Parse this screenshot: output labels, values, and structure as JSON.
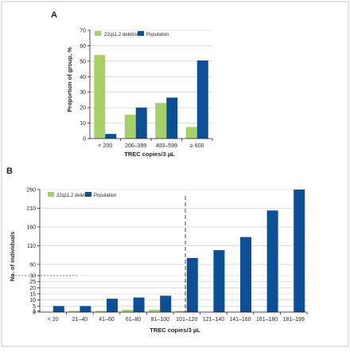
{
  "colors": {
    "deletion": "#a9cf6a",
    "population": "#0d4f94",
    "grid": "#c9c9c9",
    "text": "#231f20"
  },
  "chart_data": [
    {
      "panel": "A",
      "type": "bar",
      "categories": [
        "< 200",
        "200–399",
        "400–599",
        "≥ 600"
      ],
      "series": [
        {
          "name": "22q11.2 deletion",
          "values": [
            54,
            15.5,
            23,
            7.5
          ]
        },
        {
          "name": "Population",
          "values": [
            3,
            20,
            26.5,
            50.5
          ]
        }
      ],
      "xlabel": "TREC copies/3 µL",
      "ylabel": "Proportion of group, %",
      "ylim": [
        0,
        70
      ],
      "yticks": [
        0,
        10,
        20,
        30,
        40,
        50,
        60,
        70
      ],
      "grid": true,
      "legend": "top-left"
    },
    {
      "panel": "B",
      "type": "bar",
      "categories": [
        "< 20",
        "21–40",
        "41–60",
        "61–80",
        "81–100",
        "101–120",
        "121–140",
        "141–160",
        "161–180",
        "181–199"
      ],
      "series": [
        {
          "name": "22q11.2 deletion",
          "values": [
            0,
            1,
            1,
            2,
            2,
            1,
            0,
            0,
            0,
            0
          ]
        },
        {
          "name": "Population",
          "values": [
            5,
            5,
            11,
            12,
            13.5,
            77,
            98,
            133,
            204,
            260
          ]
        }
      ],
      "xlabel": "TREC copies/3 µL",
      "ylabel": "No. of individuals",
      "yticks": [
        0,
        1,
        5,
        10,
        15,
        20,
        25,
        30,
        60,
        110,
        160,
        210,
        260
      ],
      "ylim": [
        0,
        260
      ],
      "break_after": 30,
      "grid": true,
      "legend": "top-left"
    }
  ]
}
